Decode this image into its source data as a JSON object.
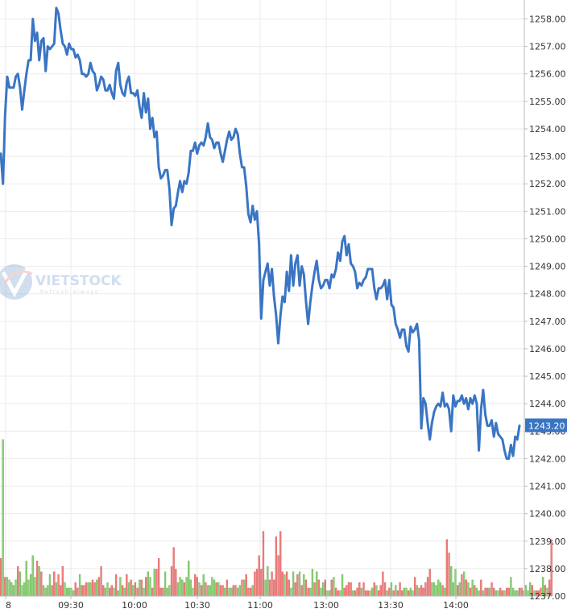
{
  "chart_data": {
    "type": "line",
    "title": "",
    "xlabel": "",
    "ylabel": "",
    "ylim": [
      1237.0,
      1258.5
    ],
    "y_ticks": [
      "1237.00",
      "1238.00",
      "1239.00",
      "1240.00",
      "1241.00",
      "1242.00",
      "1243.00",
      "1244.00",
      "1245.00",
      "1246.00",
      "1247.00",
      "1248.00",
      "1249.00",
      "1250.00",
      "1251.00",
      "1252.00",
      "1253.00",
      "1254.00",
      "1255.00",
      "1256.00",
      "1257.00",
      "1258.00"
    ],
    "x_ticks": [
      "8",
      "09:30",
      "10:00",
      "10:30",
      "11:00",
      "13:00",
      "13:30",
      "14:00"
    ],
    "last_value": "1243.20",
    "grid": true,
    "colors": {
      "line": "#3a75c4",
      "volume_up": "#8fd07a",
      "volume_down": "#f08080",
      "last_badge": "#3a75c4",
      "grid": "#ebebeb",
      "axis": "#bbbbbb"
    },
    "price_series": [
      1253.1,
      1252.0,
      1254.5,
      1255.9,
      1255.5,
      1255.5,
      1255.5,
      1255.9,
      1256.0,
      1255.5,
      1254.7,
      1255.4,
      1256.0,
      1256.5,
      1256.5,
      1258.0,
      1257.2,
      1257.5,
      1256.5,
      1257.2,
      1257.3,
      1256.1,
      1257.0,
      1256.9,
      1257.0,
      1257.1,
      1258.4,
      1258.2,
      1257.6,
      1257.1,
      1257.0,
      1256.7,
      1257.1,
      1256.9,
      1256.9,
      1256.6,
      1256.7,
      1256.5,
      1256.0,
      1256.0,
      1255.9,
      1256.0,
      1256.4,
      1256.1,
      1256.0,
      1255.4,
      1255.6,
      1255.9,
      1255.8,
      1255.4,
      1255.4,
      1255.6,
      1255.3,
      1255.1,
      1256.1,
      1256.4,
      1255.6,
      1255.3,
      1255.2,
      1255.7,
      1255.9,
      1255.3,
      1255.3,
      1255.2,
      1255.4,
      1254.8,
      1254.4,
      1255.3,
      1254.6,
      1255.1,
      1254.0,
      1254.4,
      1253.7,
      1253.9,
      1252.6,
      1252.2,
      1252.3,
      1252.5,
      1252.5,
      1251.8,
      1250.5,
      1251.1,
      1251.2,
      1251.7,
      1252.1,
      1251.7,
      1252.1,
      1252.0,
      1252.4,
      1253.2,
      1253.2,
      1253.5,
      1253.1,
      1253.4,
      1253.5,
      1253.4,
      1253.7,
      1254.2,
      1253.7,
      1253.6,
      1253.3,
      1253.5,
      1253.5,
      1253.1,
      1252.8,
      1253.2,
      1253.6,
      1253.9,
      1253.6,
      1253.7,
      1254.0,
      1253.8,
      1253.1,
      1252.6,
      1252.6,
      1251.9,
      1250.9,
      1250.6,
      1251.2,
      1250.7,
      1251.0,
      1249.8,
      1247.1,
      1248.5,
      1248.8,
      1249.1,
      1248.3,
      1248.9,
      1247.9,
      1247.2,
      1246.2,
      1247.2,
      1247.9,
      1247.7,
      1248.8,
      1248.1,
      1249.4,
      1248.3,
      1249.1,
      1249.4,
      1248.3,
      1249.0,
      1248.7,
      1247.7,
      1246.9,
      1247.7,
      1248.3,
      1248.8,
      1249.2,
      1248.5,
      1248.2,
      1248.3,
      1248.5,
      1248.5,
      1248.2,
      1248.7,
      1248.6,
      1248.9,
      1249.5,
      1249.2,
      1249.9,
      1250.1,
      1249.4,
      1249.8,
      1249.1,
      1249.0,
      1248.8,
      1248.2,
      1248.4,
      1248.3,
      1248.5,
      1248.6,
      1248.9,
      1248.9,
      1248.9,
      1248.2,
      1247.8,
      1248.2,
      1248.2,
      1248.3,
      1248.5,
      1247.8,
      1248.5,
      1247.6,
      1247.5,
      1246.9,
      1246.7,
      1246.4,
      1246.7,
      1246.7,
      1246.1,
      1245.9,
      1246.8,
      1246.6,
      1246.7,
      1246.9,
      1246.3,
      1243.1,
      1244.2,
      1244.0,
      1243.3,
      1242.7,
      1243.3,
      1243.7,
      1243.9,
      1244.0,
      1243.9,
      1244.4,
      1243.9,
      1244.0,
      1243.8,
      1243.0,
      1244.3,
      1243.9,
      1244.1,
      1244.1,
      1244.3,
      1244.0,
      1244.2,
      1243.8,
      1244.2,
      1244.0,
      1244.3,
      1244.0,
      1242.3,
      1243.8,
      1244.5,
      1243.6,
      1243.2,
      1243.2,
      1243.4,
      1242.8,
      1243.3,
      1242.9,
      1242.8,
      1242.7,
      1242.3,
      1242.0,
      1242.0,
      1242.5,
      1242.1,
      1242.8,
      1242.7,
      1243.2
    ],
    "volume_series": [
      14,
      58,
      7,
      7,
      6,
      5,
      4,
      6,
      11,
      9,
      4,
      5,
      13,
      6,
      8,
      15,
      7,
      13,
      11,
      9,
      4,
      3,
      4,
      8,
      4,
      9,
      5,
      8,
      4,
      11,
      5,
      3,
      3,
      3,
      2,
      5,
      3,
      8,
      4,
      4,
      5,
      5,
      5,
      6,
      5,
      6,
      7,
      11,
      4,
      3,
      5,
      3,
      4,
      3,
      8,
      2,
      7,
      4,
      3,
      8,
      5,
      6,
      4,
      5,
      3,
      6,
      6,
      3,
      7,
      9,
      7,
      3,
      10,
      10,
      14,
      3,
      3,
      9,
      3,
      4,
      11,
      18,
      10,
      5,
      7,
      6,
      5,
      7,
      13,
      6,
      3,
      8,
      7,
      5,
      4,
      8,
      5,
      4,
      4,
      7,
      6,
      5,
      5,
      4,
      4,
      3,
      6,
      3,
      3,
      4,
      4,
      3,
      4,
      6,
      6,
      8,
      3,
      3,
      4,
      9,
      10,
      15,
      10,
      24,
      6,
      11,
      6,
      9,
      6,
      22,
      15,
      24,
      9,
      8,
      9,
      6,
      3,
      9,
      5,
      8,
      9,
      4,
      8,
      6,
      3,
      3,
      10,
      5,
      9,
      6,
      3,
      5,
      6,
      2,
      2,
      6,
      7,
      3,
      2,
      2,
      8,
      3,
      4,
      5,
      5,
      2,
      2,
      3,
      5,
      3,
      5,
      2,
      2,
      2,
      3,
      5,
      4,
      2,
      4,
      9,
      5,
      2,
      3,
      5,
      2,
      4,
      2,
      5,
      2,
      3,
      3,
      2,
      3,
      2,
      7,
      4,
      3,
      4,
      3,
      5,
      7,
      10,
      5,
      5,
      4,
      6,
      5,
      4,
      3,
      21,
      16,
      11,
      5,
      10,
      4,
      5,
      8,
      9,
      6,
      5,
      3,
      6,
      4,
      3,
      2,
      6,
      2,
      3,
      3,
      3,
      5,
      3,
      2,
      2,
      3,
      2,
      2,
      3,
      3,
      7,
      3,
      2,
      2,
      3,
      3,
      2,
      4,
      2,
      5,
      4,
      2,
      2,
      2,
      3,
      7,
      4,
      3,
      6,
      21
    ],
    "volume_direction": [
      0,
      1,
      0,
      1,
      1,
      1,
      1,
      1,
      0,
      1,
      1,
      1,
      1,
      1,
      1,
      1,
      1,
      0,
      1,
      0,
      1,
      1,
      1,
      1,
      0,
      0,
      1,
      0,
      0,
      0,
      1,
      1,
      1,
      1,
      1,
      0,
      0,
      1,
      0,
      0,
      0,
      1,
      1,
      0,
      0,
      1,
      0,
      0,
      0,
      1,
      1,
      0,
      0,
      1,
      0,
      1,
      1,
      0,
      1,
      0,
      1,
      0,
      1,
      0,
      0,
      1,
      0,
      1,
      0,
      1,
      1,
      0,
      1,
      0,
      0,
      0,
      0,
      1,
      1,
      1,
      0,
      0,
      0,
      1,
      1,
      1,
      0,
      1,
      1,
      1,
      1,
      0,
      0,
      1,
      0,
      1,
      0,
      1,
      1,
      1,
      1,
      0,
      1,
      0,
      0,
      1,
      0,
      1,
      1,
      0,
      0,
      1,
      1,
      0,
      1,
      0,
      0,
      0,
      1,
      0,
      0,
      0,
      0,
      0,
      1,
      1,
      0,
      0,
      0,
      0,
      0,
      0,
      0,
      1,
      0,
      0,
      1,
      1,
      0,
      0,
      1,
      0,
      1,
      0,
      0,
      1,
      1,
      0,
      1,
      0,
      1,
      1,
      0,
      1,
      1,
      0,
      1,
      0,
      0,
      1,
      1,
      0,
      0,
      0,
      0,
      1,
      0,
      0,
      0,
      1,
      0,
      0,
      0,
      1,
      1,
      0,
      1,
      0,
      0,
      0,
      0,
      1,
      0,
      1,
      0,
      1,
      0,
      0,
      0,
      1,
      1,
      0,
      1,
      1,
      0,
      1,
      0,
      0,
      0,
      0,
      0,
      0,
      1,
      1,
      1,
      1,
      1,
      0,
      1,
      0,
      0,
      1,
      1,
      1,
      0,
      1,
      0,
      1,
      0,
      1,
      0,
      1,
      0,
      1,
      1,
      0,
      1,
      0,
      0,
      1,
      0,
      0,
      1,
      1,
      0,
      0,
      1,
      0,
      0,
      1,
      1,
      1,
      1,
      0,
      0,
      1,
      1,
      1,
      1,
      0,
      1,
      0,
      0,
      0,
      1,
      0,
      1
    ]
  },
  "watermark": {
    "text": "VIETSTOCK",
    "tagline": "Refresh always"
  }
}
